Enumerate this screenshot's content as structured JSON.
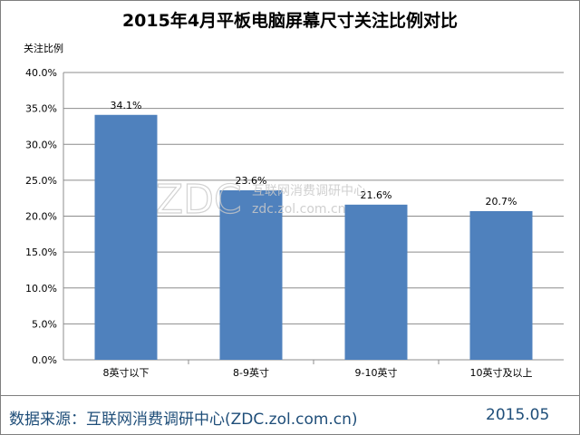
{
  "chart_data": {
    "type": "bar",
    "title": "2015年4月平板电脑屏幕尺寸关注比例对比",
    "ylabel": "关注比例",
    "xlabel": "",
    "categories": [
      "8英寸以下",
      "8-9英寸",
      "9-10英寸",
      "10英寸及以上"
    ],
    "values": [
      34.1,
      23.6,
      21.6,
      20.7
    ],
    "value_labels": [
      "34.1%",
      "23.6%",
      "21.6%",
      "20.7%"
    ],
    "ylim": [
      0,
      40
    ],
    "yticks": [
      "0.0%",
      "5.0%",
      "10.0%",
      "15.0%",
      "20.0%",
      "25.0%",
      "30.0%",
      "35.0%",
      "40.0%"
    ],
    "grid": true,
    "legend": "none",
    "bar_color": "#4f81bd"
  },
  "watermark": {
    "brand": "ZDC",
    "cn": "互联网消费调研中心",
    "url": "zdc.zol.com.cn"
  },
  "footer": {
    "source": "数据来源：互联网消费调研中心(ZDC.zol.com.cn)",
    "date": "2015.05"
  }
}
